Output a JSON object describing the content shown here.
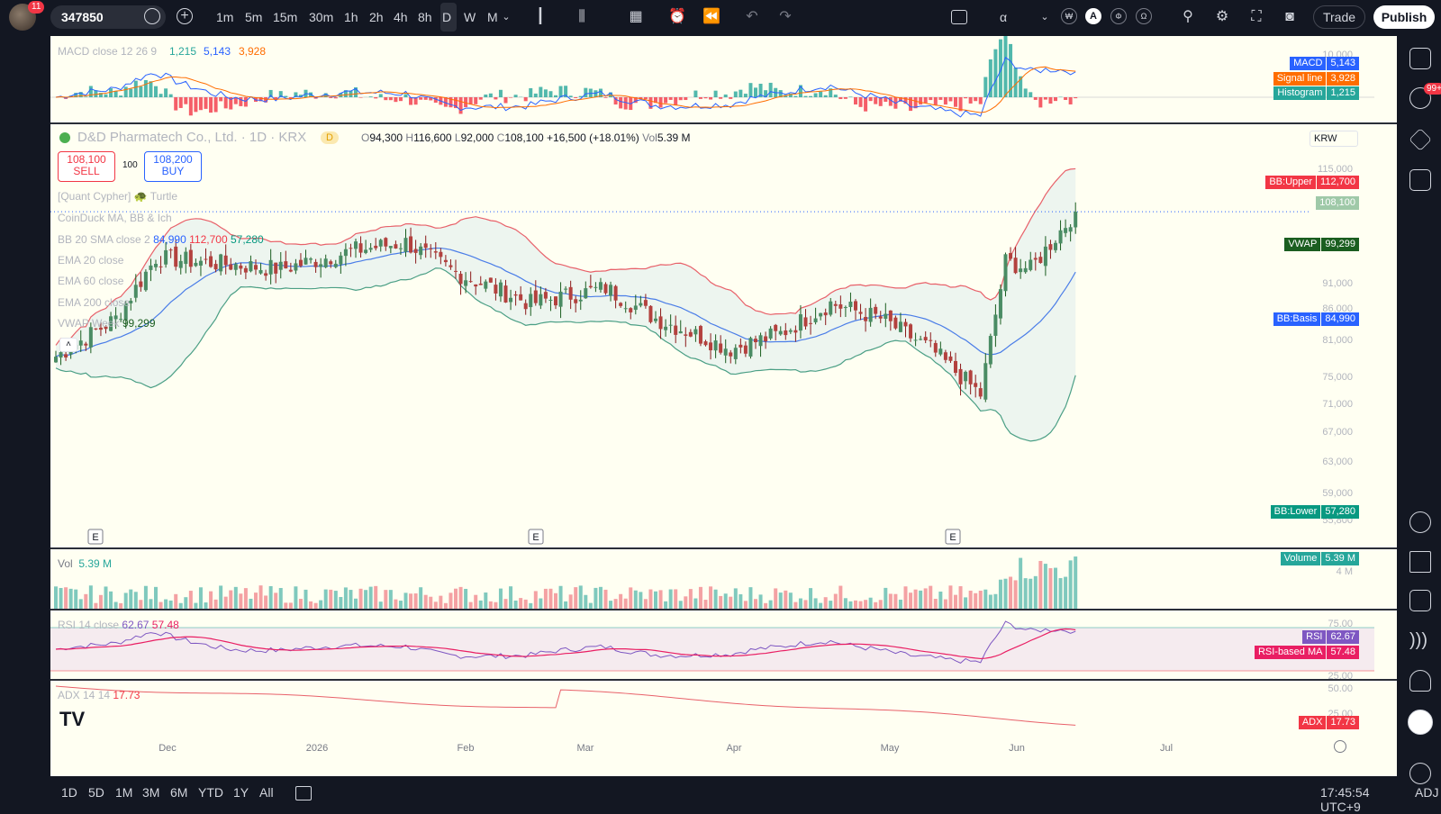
{
  "topbar": {
    "notification_count": "11",
    "symbol": "347850",
    "intervals": [
      "1m",
      "5m",
      "15m",
      "30m",
      "1h",
      "2h",
      "4h",
      "8h",
      "D",
      "W",
      "M"
    ],
    "active_interval": "D",
    "alpha_label": "α",
    "a_label": "A",
    "trade_label": "Trade",
    "publish_label": "Publish"
  },
  "header": {
    "title": "D&D Pharmatech Co., Ltd. · 1D · KRX",
    "badge": "D",
    "ohlc": {
      "o_label": "O",
      "o": "94,300",
      "h_label": "H",
      "h": "116,600",
      "l_label": "L",
      "l": "92,000",
      "c_label": "C",
      "c": "108,100",
      "change": "+16,500 (+18.01%)",
      "vol_label": "Vol",
      "vol": "5.39 M"
    },
    "currency": "KRW"
  },
  "trade": {
    "sell_price": "108,100",
    "sell_label": "SELL",
    "qty": "100",
    "buy_price": "108,200",
    "buy_label": "BUY"
  },
  "legend": {
    "quant": "[Quant Cypher] 🐢 Turtle",
    "coinduck": "CoinDuck MA, BB & Ich",
    "bb": "BB 20 SMA close 2",
    "bb_basis": "84,990",
    "bb_upper": "112,700",
    "bb_lower": "57,280",
    "ema20": "EMA 20 close",
    "ema60": "EMA 60 close",
    "ema200": "EMA 200 close",
    "vwap": "VWAP Week",
    "vwap_val": "99,299"
  },
  "macd": {
    "label": "MACD close 12 26 9",
    "hist": "1,215",
    "macd": "5,143",
    "signal": "3,928",
    "axis_top": "10,000",
    "tags": [
      {
        "name": "MACD",
        "value": "5,143",
        "color": "#2962ff"
      },
      {
        "name": "Signal line",
        "value": "3,928",
        "color": "#ff6d00"
      },
      {
        "name": "Histogram",
        "value": "1,215",
        "color": "#26a69a"
      }
    ]
  },
  "price_axis": [
    "115,000",
    "91,000",
    "86,000",
    "81,000",
    "75,000",
    "71,000",
    "67,000",
    "63,000",
    "59,000",
    "55,800"
  ],
  "price_tags": [
    {
      "name": "BB:Upper",
      "value": "112,700",
      "color": "#f23645"
    },
    {
      "name": "",
      "value": "108,100",
      "color": "#9fc9a8"
    },
    {
      "name": "VWAP",
      "value": "99,299",
      "color": "#1b5e20"
    },
    {
      "name": "BB:Basis",
      "value": "84,990",
      "color": "#2962ff"
    },
    {
      "name": "BB:Lower",
      "value": "57,280",
      "color": "#089981"
    }
  ],
  "volume": {
    "label": "Vol",
    "value": "5.39 M",
    "tag_name": "Volume",
    "tag_value": "5.39 M",
    "axis": "4 M"
  },
  "rsi": {
    "label": "RSI 14 close",
    "rsi": "62.67",
    "ma": "57.48",
    "axis_top": "75.00",
    "axis_bottom": "25.00",
    "tags": [
      {
        "name": "RSI",
        "value": "62.67",
        "color": "#7e57c2"
      },
      {
        "name": "RSI-based MA",
        "value": "57.48",
        "color": "#e91e63"
      }
    ]
  },
  "adx": {
    "label": "ADX 14 14",
    "value": "17.73",
    "axis_top": "50.00",
    "axis_mid": "25.00",
    "tag_name": "ADX",
    "tag_value": "17.73"
  },
  "time_axis": [
    "Dec",
    "2026",
    "Feb",
    "Mar",
    "Apr",
    "May",
    "Jun",
    "Jul"
  ],
  "earnings_marker": "E",
  "rightbar": {
    "badge": "99+"
  },
  "bottombar": {
    "ranges": [
      "1D",
      "5D",
      "1M",
      "3M",
      "6M",
      "YTD",
      "1Y",
      "All"
    ],
    "clock": "17:45:54 UTC+9",
    "adj": "ADJ"
  },
  "colors": {
    "up": "#26a69a",
    "down": "#ef5350",
    "bg": "#fffff2",
    "bb_upper": "#e8616a",
    "bb_lower": "#4b9f85",
    "bb_basis": "#4a7de8"
  }
}
